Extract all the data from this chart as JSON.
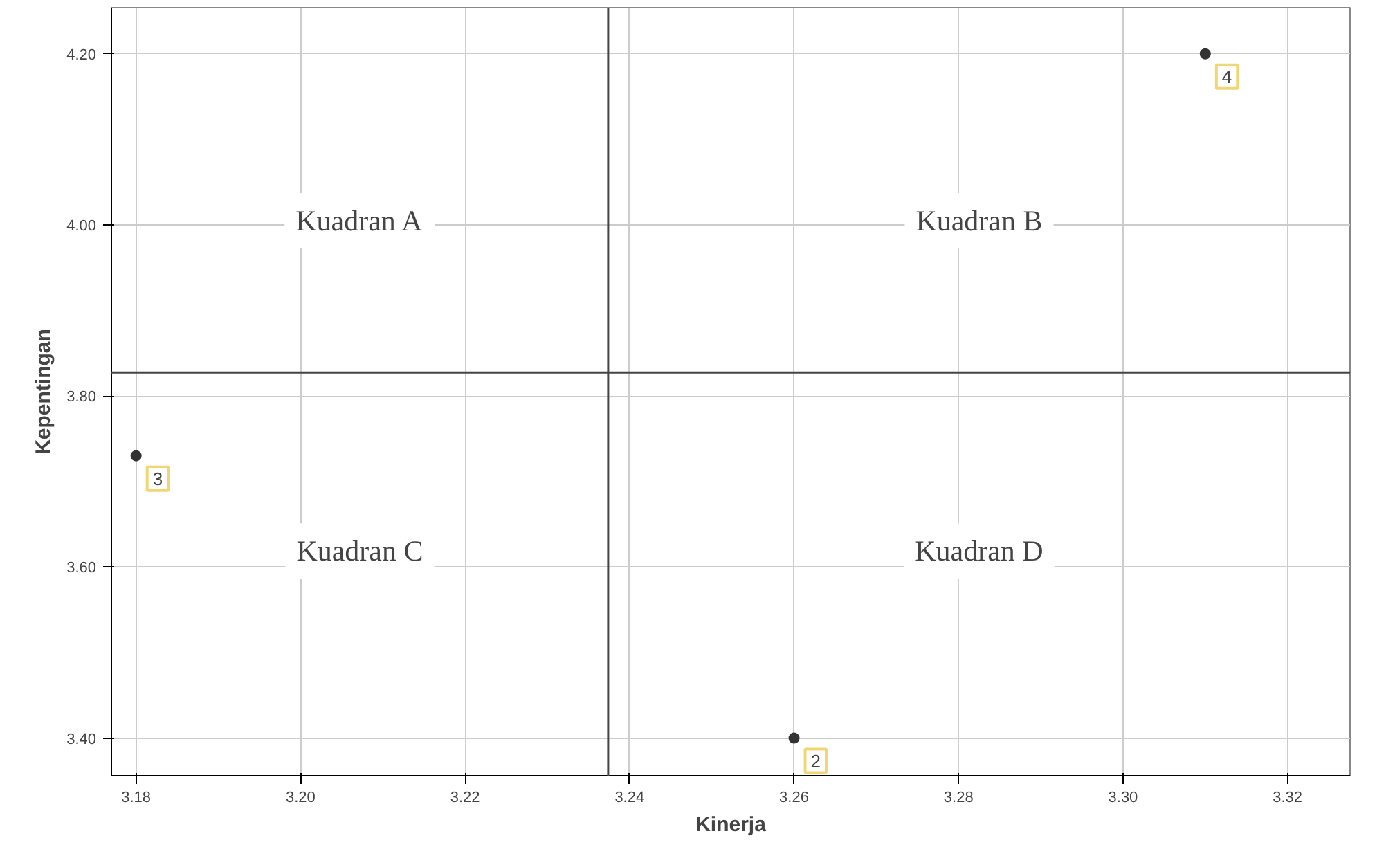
{
  "chart_data": {
    "type": "scatter",
    "xlabel": "Kinerja",
    "ylabel": "Kepentingan",
    "x": [
      3.18,
      3.26,
      3.31
    ],
    "values": [
      3.73,
      3.4,
      4.2
    ],
    "color": "#333333",
    "marker": "circle",
    "xlim": [
      3.177,
      3.3276
    ],
    "ylim": [
      3.356,
      4.254
    ],
    "xticks": [
      {
        "value": 3.18,
        "label": "3.18"
      },
      {
        "value": 3.2,
        "label": "3.20"
      },
      {
        "value": 3.22,
        "label": "3.22"
      },
      {
        "value": 3.24,
        "label": "3.24"
      },
      {
        "value": 3.26,
        "label": "3.26"
      },
      {
        "value": 3.28,
        "label": "3.28"
      },
      {
        "value": 3.3,
        "label": "3.30"
      },
      {
        "value": 3.32,
        "label": "3.32"
      }
    ],
    "yticks": [
      {
        "value": 3.4,
        "label": "3.40"
      },
      {
        "value": 3.6,
        "label": "3.60"
      },
      {
        "value": 3.8,
        "label": "3.80"
      },
      {
        "value": 4.0,
        "label": "4.00"
      },
      {
        "value": 4.2,
        "label": "4.20"
      }
    ],
    "grid": true,
    "ref_lines": [
      {
        "axis": "x",
        "value": 3.2374,
        "color": "#444444"
      },
      {
        "axis": "y",
        "value": 3.8275,
        "color": "#444444"
      }
    ],
    "annotations": [
      "Kuadran A",
      "Kuadran B",
      "Kuadran C",
      "Kuadran D",
      {
        "text": "3",
        "x": 3.18,
        "y": 3.73
      },
      {
        "text": "2",
        "x": 3.26,
        "y": 3.4
      },
      {
        "text": "4",
        "x": 3.31,
        "y": 4.2
      }
    ]
  }
}
